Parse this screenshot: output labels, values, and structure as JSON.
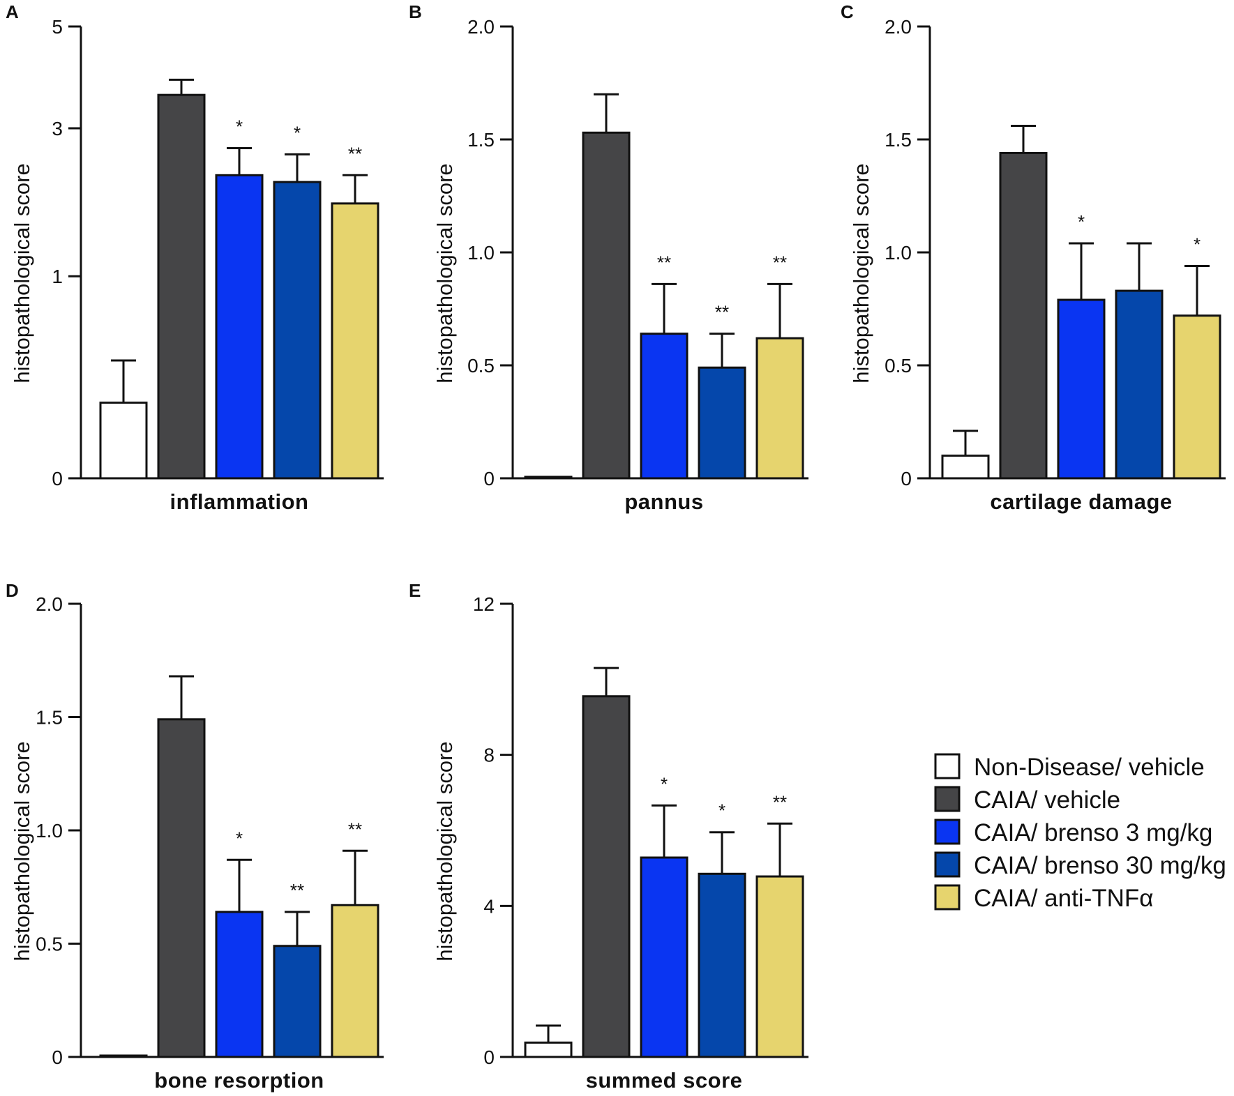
{
  "groups": [
    {
      "name": "Non-Disease/ vehicle",
      "color": "#ffffff"
    },
    {
      "name": "CAIA/ vehicle",
      "color": "#454547"
    },
    {
      "name": "CAIA/ brenso 3 mg/kg",
      "color": "#0a35f2"
    },
    {
      "name": "CAIA/ brenso 30 mg/kg",
      "color": "#0547ab"
    },
    {
      "name": "CAIA/ anti-TNFα",
      "color": "#e6d46e"
    }
  ],
  "chart_data": [
    {
      "panel": "A",
      "type": "bar",
      "scale": "sqrt",
      "xlabel": "inflammation",
      "ylabel": "histopathological score",
      "ylim": [
        0,
        5
      ],
      "yticks": [
        0,
        1,
        3,
        5
      ],
      "categories": [
        "Non-Disease/ vehicle",
        "CAIA/ vehicle",
        "CAIA/ brenso 3 mg/kg",
        "CAIA/ brenso 30 mg/kg",
        "CAIA/ anti-TNFα"
      ],
      "values": [
        0.14,
        3.6,
        2.25,
        2.15,
        1.85
      ],
      "errors": [
        0.2,
        0.29,
        0.42,
        0.42,
        0.4
      ],
      "significance": [
        "",
        "",
        "*",
        "*",
        "**"
      ]
    },
    {
      "panel": "B",
      "type": "bar",
      "scale": "linear",
      "xlabel": "pannus",
      "ylabel": "histopathological score",
      "ylim": [
        0,
        2.0
      ],
      "yticks": [
        0,
        0.5,
        1.0,
        1.5,
        2.0
      ],
      "yticklabels": [
        "0",
        "0.5",
        "1.0",
        "1.5",
        "2.0"
      ],
      "categories": [
        "Non-Disease/ vehicle",
        "CAIA/ vehicle",
        "CAIA/ brenso 3 mg/kg",
        "CAIA/ brenso 30 mg/kg",
        "CAIA/ anti-TNFα"
      ],
      "values": [
        0.0,
        1.53,
        0.64,
        0.49,
        0.62
      ],
      "errors": [
        0.0,
        0.17,
        0.22,
        0.15,
        0.24
      ],
      "significance": [
        "",
        "",
        "**",
        "**",
        "**"
      ]
    },
    {
      "panel": "C",
      "type": "bar",
      "scale": "linear",
      "xlabel": "cartilage damage",
      "ylabel": "histopathological score",
      "ylim": [
        0,
        2.0
      ],
      "yticks": [
        0,
        0.5,
        1.0,
        1.5,
        2.0
      ],
      "yticklabels": [
        "0",
        "0.5",
        "1.0",
        "1.5",
        "2.0"
      ],
      "categories": [
        "Non-Disease/ vehicle",
        "CAIA/ vehicle",
        "CAIA/ brenso 3 mg/kg",
        "CAIA/ brenso 30 mg/kg",
        "CAIA/ anti-TNFα"
      ],
      "values": [
        0.1,
        1.44,
        0.79,
        0.83,
        0.72
      ],
      "errors": [
        0.11,
        0.12,
        0.25,
        0.21,
        0.22
      ],
      "significance": [
        "",
        "",
        "*",
        "",
        "*"
      ]
    },
    {
      "panel": "D",
      "type": "bar",
      "scale": "linear",
      "xlabel": "bone resorption",
      "ylabel": "histopathological score",
      "ylim": [
        0,
        2.0
      ],
      "yticks": [
        0,
        0.5,
        1.0,
        1.5,
        2.0
      ],
      "yticklabels": [
        "0",
        "0.5",
        "1.0",
        "1.5",
        "2.0"
      ],
      "categories": [
        "Non-Disease/ vehicle",
        "CAIA/ vehicle",
        "CAIA/ brenso 3 mg/kg",
        "CAIA/ brenso 30 mg/kg",
        "CAIA/ anti-TNFα"
      ],
      "values": [
        0.0,
        1.49,
        0.64,
        0.49,
        0.67
      ],
      "errors": [
        0.0,
        0.19,
        0.23,
        0.15,
        0.24
      ],
      "significance": [
        "",
        "",
        "*",
        "**",
        "**"
      ]
    },
    {
      "panel": "E",
      "type": "bar",
      "scale": "linear",
      "xlabel": "summed score",
      "ylabel": "histopathological score",
      "ylim": [
        0,
        12
      ],
      "yticks": [
        0,
        4,
        8,
        12
      ],
      "yticklabels": [
        "0",
        "4",
        "8",
        "12"
      ],
      "categories": [
        "Non-Disease/ vehicle",
        "CAIA/ vehicle",
        "CAIA/ brenso 3 mg/kg",
        "CAIA/ brenso 30 mg/kg",
        "CAIA/ anti-TNFα"
      ],
      "values": [
        0.38,
        9.55,
        5.28,
        4.85,
        4.78
      ],
      "errors": [
        0.45,
        0.75,
        1.38,
        1.1,
        1.4
      ],
      "significance": [
        "",
        "",
        "*",
        "*",
        "**"
      ]
    }
  ]
}
